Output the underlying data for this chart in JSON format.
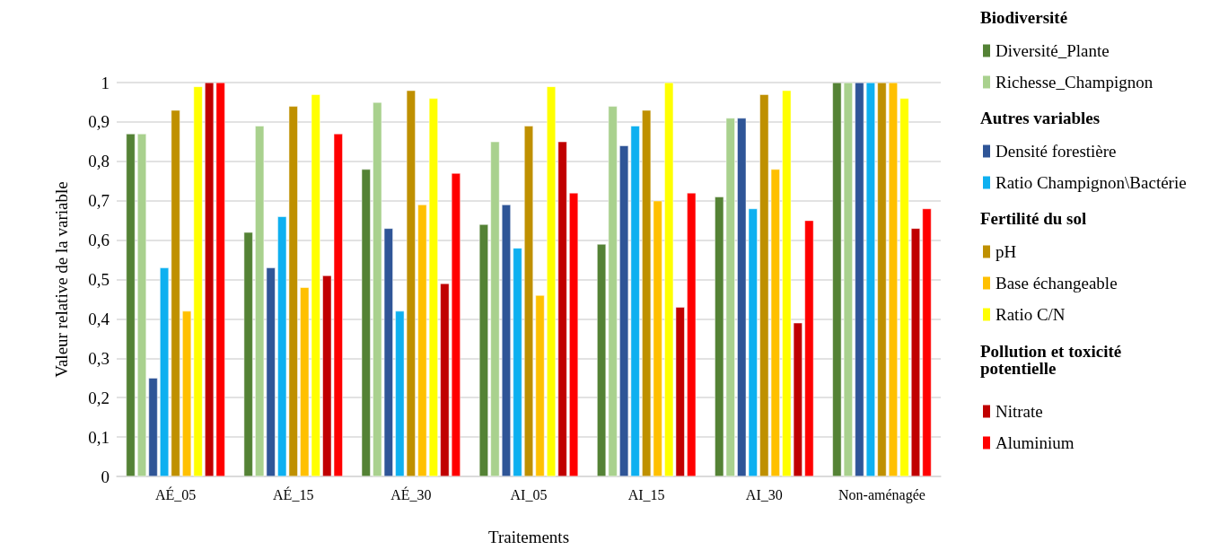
{
  "chart_data": {
    "type": "bar",
    "xlabel": "Traitements",
    "ylabel": "Valeur relative de la variable",
    "categories": [
      "AÉ_05",
      "AÉ_15",
      "AÉ_30",
      "AI_05",
      "AI_15",
      "AI_30",
      "Non-aménagée"
    ],
    "series": [
      {
        "name": "Diversité_Plante",
        "color": "#548235",
        "values": [
          0.87,
          0.62,
          0.78,
          0.64,
          0.59,
          0.71,
          1
        ]
      },
      {
        "name": "Richesse_Champignon",
        "color": "#a9d18e",
        "values": [
          0.87,
          0.89,
          0.95,
          0.85,
          0.94,
          0.91,
          1
        ]
      },
      {
        "name": "Densité forestière",
        "color": "#2f5597",
        "values": [
          0.25,
          0.53,
          0.63,
          0.69,
          0.84,
          0.91,
          1
        ]
      },
      {
        "name": "Ratio Champignon\\Bactérie",
        "color": "#0eb0f0",
        "values": [
          0.53,
          0.66,
          0.42,
          0.58,
          0.89,
          0.68,
          1
        ]
      },
      {
        "name": "pH",
        "color": "#bf9000",
        "values": [
          0.93,
          0.94,
          0.98,
          0.89,
          0.93,
          0.97,
          1
        ]
      },
      {
        "name": "Base échangeable",
        "color": "#ffc000",
        "values": [
          0.42,
          0.48,
          0.69,
          0.46,
          0.7,
          0.78,
          1
        ]
      },
      {
        "name": "Ratio C/N",
        "color": "#ffff00",
        "values": [
          0.99,
          0.97,
          0.96,
          0.99,
          1,
          0.98,
          0.96
        ]
      },
      {
        "name": "Nitrate",
        "color": "#c00000",
        "values": [
          1,
          0.51,
          0.49,
          0.85,
          0.43,
          0.39,
          0.63
        ]
      },
      {
        "name": "Aluminium",
        "color": "#ff0000",
        "values": [
          1,
          0.87,
          0.77,
          0.72,
          0.72,
          0.65,
          0.68
        ]
      }
    ],
    "annotations": [
      "Biodiversité",
      "Autres variables",
      "Fertilité du sol",
      "Pollution et toxicité potentielle"
    ],
    "ylim": [
      0,
      1
    ],
    "yticks": [
      0,
      {
        "value": 0.1,
        "label": "0,1"
      },
      {
        "value": 0.2,
        "label": "0,2"
      },
      {
        "value": 0.3,
        "label": "0,3"
      },
      {
        "value": 0.4,
        "label": "0,4"
      },
      {
        "value": 0.5,
        "label": "0,5"
      },
      {
        "value": 0.6,
        "label": "0,6"
      },
      {
        "value": 0.7,
        "label": "0,7"
      },
      {
        "value": 0.8,
        "label": "0,8"
      },
      {
        "value": 0.9,
        "label": "0,9"
      },
      1
    ],
    "grid": "y",
    "legend": "right"
  }
}
